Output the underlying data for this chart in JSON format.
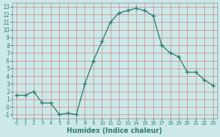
{
  "x": [
    0,
    1,
    2,
    3,
    4,
    5,
    6,
    7,
    8,
    9,
    10,
    11,
    12,
    13,
    14,
    15,
    16,
    17,
    18,
    19,
    20,
    21,
    22,
    23
  ],
  "y": [
    1.5,
    1.5,
    2.0,
    0.5,
    0.5,
    -1.0,
    -0.8,
    -1.0,
    3.0,
    6.0,
    8.5,
    11.0,
    12.2,
    12.5,
    12.8,
    12.5,
    11.8,
    8.0,
    7.0,
    6.5,
    4.5,
    4.5,
    3.5,
    2.8
  ],
  "line_color": "#2e7d6e",
  "marker": "+",
  "marker_size": 5,
  "xlabel": "Humidex (Indice chaleur)",
  "ylabel": "",
  "title": "",
  "bg_color": "#cce8e8",
  "grid_color": "#d08080",
  "xlim": [
    -0.5,
    23.5
  ],
  "ylim": [
    -1.5,
    13.5
  ],
  "yticks": [
    -1,
    0,
    1,
    2,
    3,
    4,
    5,
    6,
    7,
    8,
    9,
    10,
    11,
    12,
    13
  ],
  "xticks": [
    0,
    1,
    2,
    3,
    4,
    5,
    6,
    7,
    8,
    9,
    10,
    11,
    12,
    13,
    14,
    15,
    16,
    17,
    18,
    19,
    20,
    21,
    22,
    23
  ]
}
